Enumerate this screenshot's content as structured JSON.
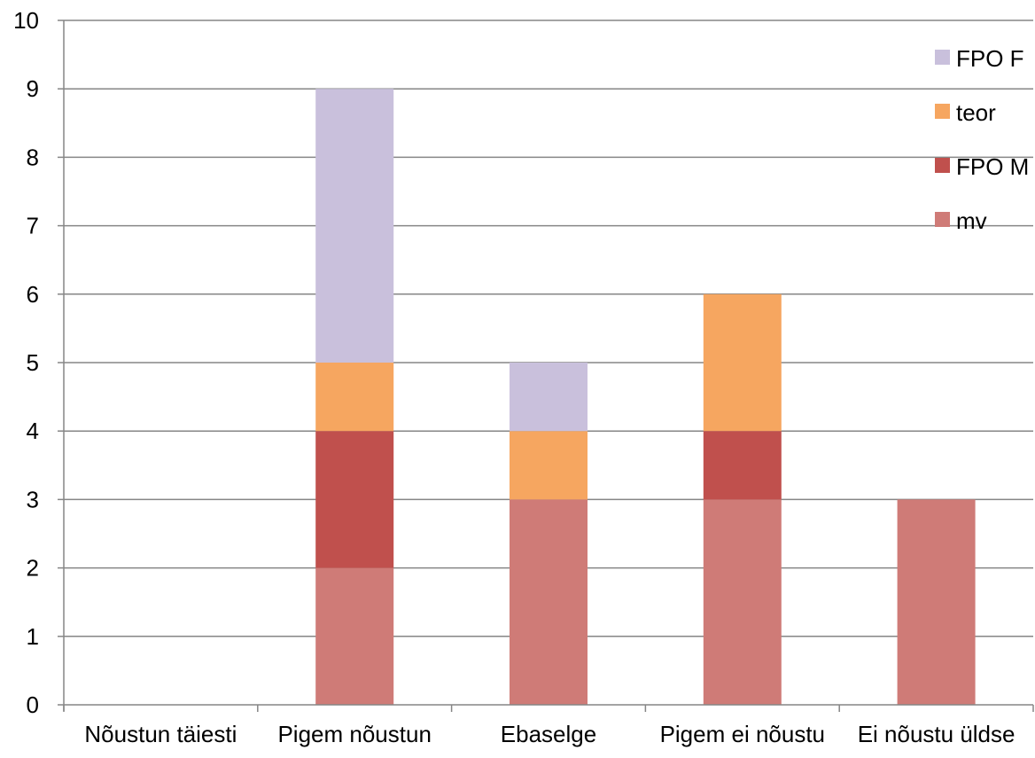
{
  "chart_data": {
    "type": "bar",
    "stacked": true,
    "title": "",
    "xlabel": "",
    "ylabel": "",
    "ylim": [
      0,
      10
    ],
    "yticks": [
      "0",
      "1",
      "2",
      "3",
      "4",
      "5",
      "6",
      "7",
      "8",
      "9",
      "10"
    ],
    "grid": true,
    "legend_position": "right",
    "categories": [
      "Nõustun täiesti",
      "Pigem nõustun",
      "Ebaselge",
      "Pigem ei nõustu",
      "Ei nõustu üldse"
    ],
    "series": [
      {
        "name": "mv",
        "color": "#CF7B77",
        "values": [
          0,
          2,
          3,
          3,
          3
        ]
      },
      {
        "name": "FPO M",
        "color": "#C0504D",
        "values": [
          0,
          2,
          0,
          1,
          0
        ]
      },
      {
        "name": "teor",
        "color": "#F6A660",
        "values": [
          0,
          1,
          1,
          2,
          0
        ]
      },
      {
        "name": "FPO F",
        "color": "#C9C0DC",
        "values": [
          0,
          4,
          1,
          0,
          0
        ]
      }
    ],
    "legend_order": [
      "FPO F",
      "teor",
      "FPO M",
      "mv"
    ]
  }
}
